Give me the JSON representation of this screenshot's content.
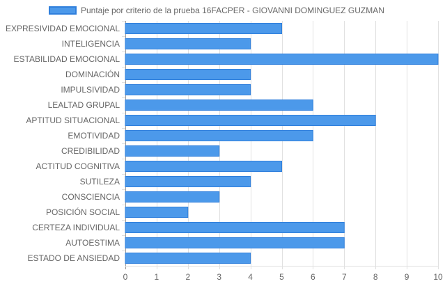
{
  "chart_data": {
    "type": "bar",
    "orientation": "horizontal",
    "legend": {
      "label": "Puntaje por criterio de la prueba 16FACPER - GIOVANNI DOMINGUEZ GUZMAN",
      "placement": "top"
    },
    "categories": [
      "EXPRESIVIDAD EMOCIONAL",
      "INTELIGENCIA",
      "ESTABILIDAD EMOCIONAL",
      "DOMINACIÓN",
      "IMPULSIVIDAD",
      "LEALTAD GRUPAL",
      "APTITUD SITUACIONAL",
      "EMOTIVIDAD",
      "CREDIBILIDAD",
      "ACTITUD COGNITIVA",
      "SUTILEZA",
      "CONSCIENCIA",
      "POSICIÓN SOCIAL",
      "CERTEZA INDIVIDUAL",
      "AUTOESTIMA",
      "ESTADO DE ANSIEDAD"
    ],
    "series": [
      {
        "name": "Puntaje por criterio de la prueba 16FACPER - GIOVANNI DOMINGUEZ GUZMAN",
        "values": [
          5,
          4,
          10,
          4,
          4,
          6,
          8,
          6,
          3,
          5,
          4,
          3,
          2,
          7,
          7,
          4
        ]
      }
    ],
    "xlim": [
      0,
      10
    ],
    "xticks": [
      "0",
      "1",
      "2",
      "3",
      "4",
      "5",
      "6",
      "7",
      "8",
      "9",
      "10"
    ],
    "grid": true,
    "colors": {
      "bar_fill": "#4c99ea",
      "bar_border": "#2f7fdc",
      "grid": "#e0e0e0",
      "axis": "#999999"
    }
  }
}
